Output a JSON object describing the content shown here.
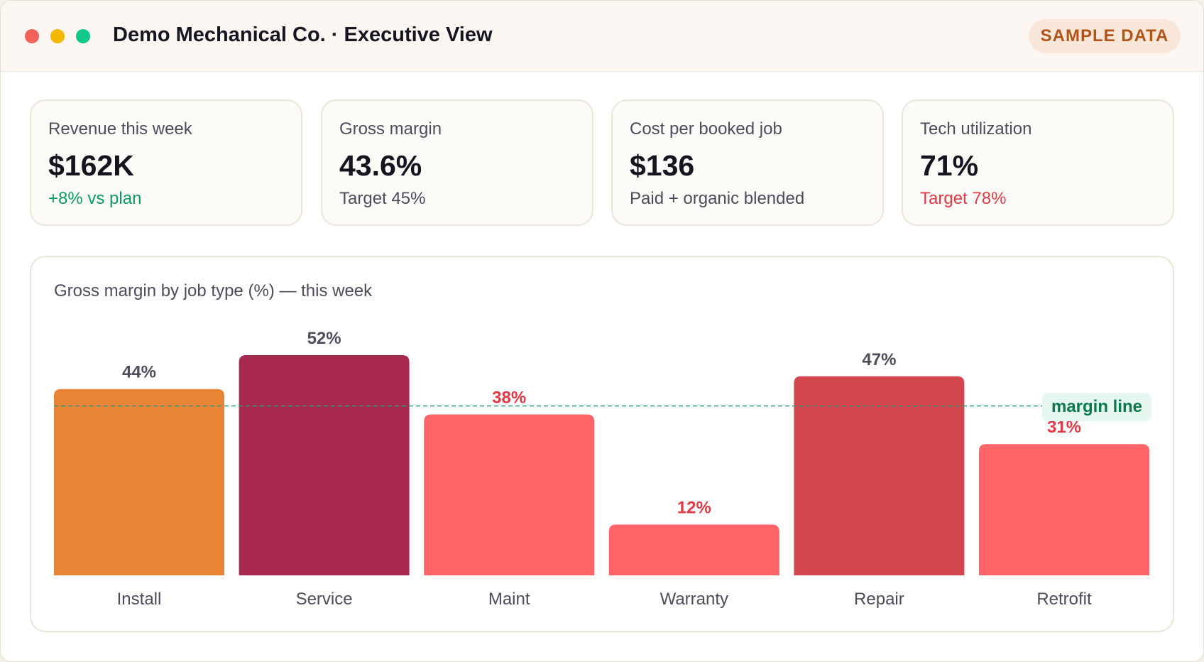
{
  "window": {
    "title": "Demo Mechanical Co. · Executive View",
    "badge": "SAMPLE DATA"
  },
  "kpis": [
    {
      "label": "Revenue this week",
      "value": "$162K",
      "sub": "+8% vs plan",
      "sub_color": "#0c9a63"
    },
    {
      "label": "Gross margin",
      "value": "43.6%",
      "sub": "Target 45%",
      "sub_color": "#4c4c5c"
    },
    {
      "label": "Cost per booked job",
      "value": "$136",
      "sub": "Paid + organic blended",
      "sub_color": "#4c4c5c"
    },
    {
      "label": "Tech utilization",
      "value": "71%",
      "sub": "Target 78%",
      "sub_color": "#e03a45"
    }
  ],
  "colors": {
    "good": "#0c9a63",
    "bad": "#e03a45",
    "neutral_label": "#4c4c5c",
    "margin_line": "#2d9a77"
  },
  "chart_data": {
    "type": "bar",
    "title": "Gross margin by job type (%) — this week",
    "categories": [
      "Install",
      "Service",
      "Maint",
      "Warranty",
      "Repair",
      "Retrofit"
    ],
    "values": [
      44,
      52,
      38,
      12,
      47,
      31
    ],
    "value_labels": [
      "44%",
      "52%",
      "38%",
      "12%",
      "47%",
      "31%"
    ],
    "bar_colors": [
      "#e88436",
      "#a82a4e",
      "#ff6568",
      "#ff6568",
      "#d4464d",
      "#ff6568"
    ],
    "label_colors": [
      "#4c4c5c",
      "#4c4c5c",
      "#e03a45",
      "#e03a45",
      "#4c4c5c",
      "#e03a45"
    ],
    "reference_line": {
      "value": 40,
      "label": "margin line"
    },
    "ylim": [
      0,
      52
    ],
    "grid": false,
    "legend": "none"
  }
}
